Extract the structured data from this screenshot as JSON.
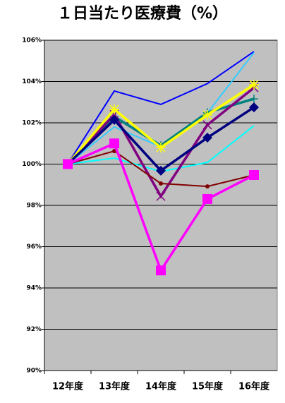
{
  "chart_data": {
    "type": "line",
    "title": "１日当たり医療費（%）",
    "categories": [
      "12年度",
      "13年度",
      "14年度",
      "15年度",
      "16年度"
    ],
    "ylim": [
      90,
      106
    ],
    "yticks": [
      {
        "value": 90,
        "label": "90%"
      },
      {
        "value": 92,
        "label": "92%"
      },
      {
        "value": 94,
        "label": "94%"
      },
      {
        "value": 96,
        "label": "96%"
      },
      {
        "value": 98,
        "label": "98%"
      },
      {
        "value": 100,
        "label": "100%"
      },
      {
        "value": 102,
        "label": "102%"
      },
      {
        "value": 104,
        "label": "104%"
      },
      {
        "value": 106,
        "label": "106%"
      }
    ],
    "grid": true,
    "background": "#c0c0c0",
    "series": [
      {
        "color": "#0000ff",
        "marker": "none",
        "values": [
          100,
          103.54,
          102.89,
          103.9,
          105.45
        ]
      },
      {
        "color": "#33ccff",
        "marker": "none",
        "values": [
          100,
          101.8,
          100.84,
          102.48,
          105.4
        ]
      },
      {
        "color": "#00ffff",
        "marker": "none",
        "values": [
          100,
          100.29,
          99.64,
          100.08,
          101.86
        ]
      },
      {
        "color": "#008080",
        "marker": "plus",
        "values": [
          100,
          102.3,
          100.9,
          102.5,
          103.16
        ]
      },
      {
        "color": "#800080",
        "marker": "x",
        "values": [
          100,
          102.4,
          98.44,
          101.9,
          103.7
        ]
      },
      {
        "color": "#800000",
        "marker": "circle",
        "values": [
          100,
          100.63,
          99.06,
          98.92,
          99.47
        ]
      },
      {
        "color": "#ffff00",
        "marker": "star",
        "values": [
          100,
          102.65,
          100.8,
          102.38,
          103.85
        ]
      },
      {
        "color": "#000080",
        "marker": "diamond",
        "values": [
          100,
          102.14,
          99.68,
          101.28,
          102.75
        ]
      },
      {
        "color": "#ff00ff",
        "marker": "square",
        "values": [
          100,
          101.0,
          94.85,
          98.31,
          99.47
        ]
      }
    ]
  }
}
